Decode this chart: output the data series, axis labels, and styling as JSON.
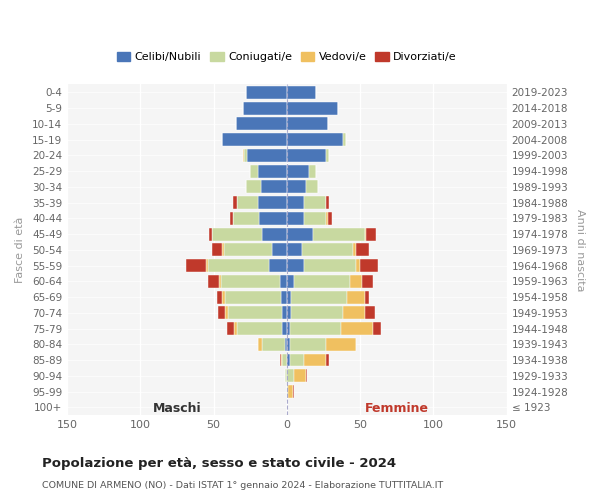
{
  "age_groups": [
    "0-4",
    "5-9",
    "10-14",
    "15-19",
    "20-24",
    "25-29",
    "30-34",
    "35-39",
    "40-44",
    "45-49",
    "50-54",
    "55-59",
    "60-64",
    "65-69",
    "70-74",
    "75-79",
    "80-84",
    "85-89",
    "90-94",
    "95-99",
    "100+"
  ],
  "birth_years": [
    "2019-2023",
    "2014-2018",
    "2009-2013",
    "2004-2008",
    "1999-2003",
    "1994-1998",
    "1989-1993",
    "1984-1988",
    "1979-1983",
    "1974-1978",
    "1969-1973",
    "1964-1968",
    "1959-1963",
    "1954-1958",
    "1949-1953",
    "1944-1948",
    "1939-1943",
    "1934-1938",
    "1929-1933",
    "1924-1928",
    "≤ 1923"
  ],
  "maschi_celibi": [
    28,
    30,
    35,
    44,
    27,
    20,
    18,
    20,
    19,
    17,
    10,
    12,
    5,
    4,
    3,
    3,
    1,
    0,
    0,
    0,
    0
  ],
  "maschi_coniugati": [
    0,
    0,
    0,
    0,
    2,
    5,
    10,
    14,
    18,
    34,
    33,
    42,
    40,
    38,
    37,
    31,
    16,
    3,
    1,
    0,
    0
  ],
  "maschi_vedovi": [
    0,
    0,
    0,
    0,
    1,
    0,
    0,
    0,
    0,
    0,
    1,
    1,
    1,
    2,
    2,
    2,
    3,
    1,
    0,
    0,
    0
  ],
  "maschi_divorziati": [
    0,
    0,
    0,
    0,
    0,
    0,
    0,
    3,
    2,
    2,
    7,
    14,
    8,
    4,
    5,
    5,
    0,
    1,
    0,
    0,
    0
  ],
  "femmine_celibi": [
    20,
    35,
    28,
    38,
    27,
    15,
    13,
    12,
    12,
    18,
    10,
    12,
    5,
    3,
    3,
    2,
    2,
    2,
    0,
    0,
    0
  ],
  "femmine_coniugati": [
    0,
    0,
    0,
    2,
    2,
    5,
    8,
    15,
    15,
    35,
    35,
    35,
    38,
    38,
    35,
    35,
    25,
    10,
    5,
    1,
    0
  ],
  "femmine_vedovi": [
    0,
    0,
    0,
    0,
    0,
    0,
    0,
    0,
    1,
    1,
    2,
    3,
    8,
    12,
    15,
    22,
    20,
    15,
    8,
    3,
    0
  ],
  "femmine_divorziati": [
    0,
    0,
    0,
    0,
    0,
    0,
    0,
    2,
    3,
    7,
    9,
    12,
    8,
    3,
    7,
    5,
    0,
    2,
    1,
    1,
    0
  ],
  "color_celibi": "#4a76b8",
  "color_coniugati": "#c8d9a0",
  "color_vedovi": "#f0c060",
  "color_divorziati": "#c0392b",
  "xlim": 150,
  "bg_color": "#f5f5f5",
  "title": "Popolazione per età, sesso e stato civile - 2024",
  "subtitle": "COMUNE DI ARMENO (NO) - Dati ISTAT 1° gennaio 2024 - Elaborazione TUTTITALIA.IT",
  "label_maschi": "Maschi",
  "label_femmine": "Femmine",
  "ylabel_left": "Fasce di età",
  "ylabel_right": "Anni di nascita",
  "legend_labels": [
    "Celibi/Nubili",
    "Coniugati/e",
    "Vedovi/e",
    "Divorziati/e"
  ]
}
